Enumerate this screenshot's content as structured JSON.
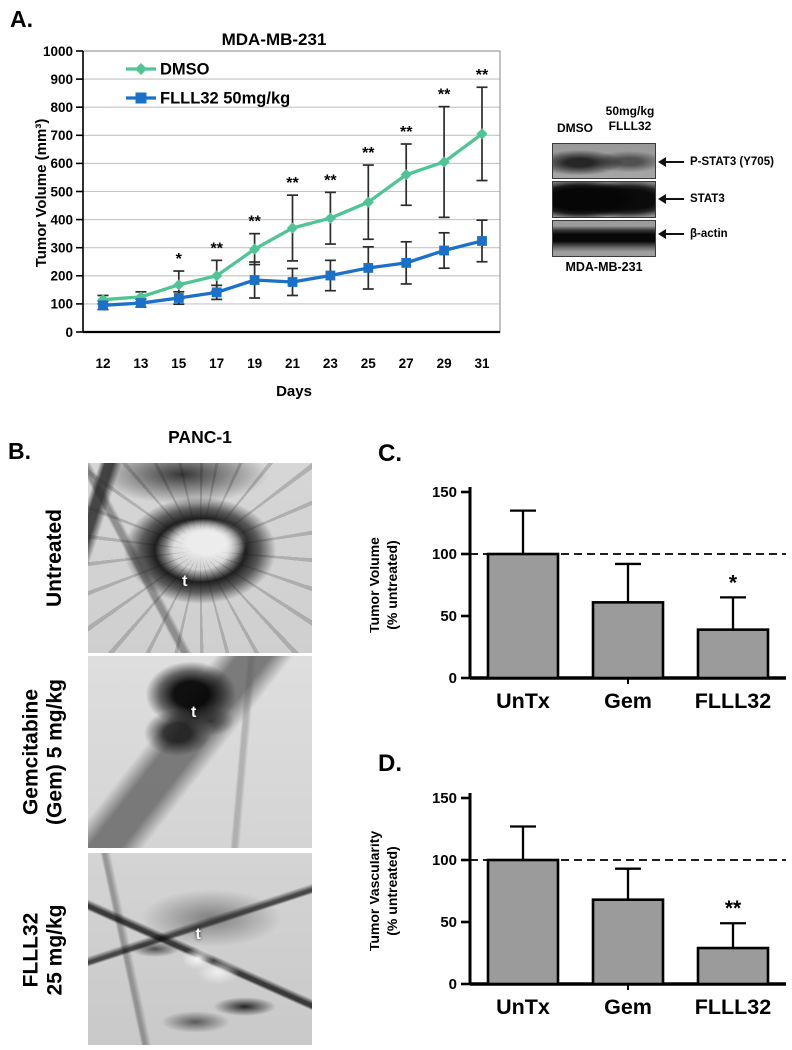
{
  "colors": {
    "dmso_green": "#4fc494",
    "flll32_blue": "#1b70c8",
    "bar_gray": "#9b9b9b",
    "background": "#ffffff"
  },
  "panelA": {
    "label": "A.",
    "blot": {
      "lane1_header": "DMSO",
      "lane2_header_line1": "50mg/kg",
      "lane2_header_line2": "FLLL32",
      "rows": [
        {
          "label": "P-STAT3 (Y705)"
        },
        {
          "label": "STAT3"
        },
        {
          "label": "β-actin"
        }
      ],
      "cell_line": "MDA-MB-231"
    }
  },
  "panelB": {
    "label": "B.",
    "title": "PANC-1",
    "images": [
      {
        "name": "untreated",
        "label_lines": [
          "Untreated"
        ],
        "marker": "t"
      },
      {
        "name": "gemcitabine",
        "label_lines": [
          "Gemcitabine",
          "(Gem) 5 mg/kg"
        ],
        "marker": "t"
      },
      {
        "name": "flll32",
        "label_lines": [
          "FLLL32",
          "25 mg/kg"
        ],
        "marker": "t"
      }
    ]
  },
  "panelC": {
    "label": "C."
  },
  "panelD": {
    "label": "D."
  },
  "chart_data": [
    {
      "id": "A",
      "type": "line",
      "title": "MDA-MB-231",
      "xlabel": "Days",
      "ylabel": "Tumor Volume (mm³)",
      "categories": [
        "12",
        "13",
        "15",
        "17",
        "19",
        "21",
        "23",
        "25",
        "27",
        "29",
        "31"
      ],
      "ylim": [
        0,
        1000
      ],
      "yticks": [
        0,
        100,
        200,
        300,
        400,
        500,
        600,
        700,
        800,
        900,
        1000
      ],
      "grid": true,
      "legend_position": "top-left-inside",
      "series": [
        {
          "name": "DMSO",
          "color": "#4fc494",
          "marker": "diamond",
          "values": [
            115,
            125,
            168,
            200,
            295,
            370,
            405,
            462,
            560,
            605,
            705
          ],
          "err": [
            15,
            18,
            49,
            55,
            55,
            117,
            92,
            132,
            109,
            197,
            166
          ]
        },
        {
          "name": "FLLL32 50mg/kg",
          "color": "#1b70c8",
          "marker": "square",
          "values": [
            95,
            103,
            121,
            141,
            185,
            178,
            201,
            228,
            246,
            290,
            324
          ],
          "err": [
            15,
            14,
            22,
            25,
            64,
            48,
            54,
            75,
            75,
            63,
            74
          ]
        }
      ],
      "significance": [
        "",
        "",
        "*",
        "**",
        "**",
        "**",
        "**",
        "**",
        "**",
        "**",
        "**"
      ]
    },
    {
      "id": "C",
      "type": "bar",
      "ylabel_lines": [
        "Tumor Volume",
        "(% untreated)"
      ],
      "categories": [
        "UnTx",
        "Gem",
        "FLLL32"
      ],
      "values": [
        100,
        61,
        39
      ],
      "errors": [
        35,
        31,
        26
      ],
      "significance": [
        "",
        "",
        "*"
      ],
      "yticks": [
        0,
        50,
        100,
        150
      ],
      "ylim": [
        0,
        150
      ],
      "dashed_line_y": 100,
      "bar_color": "#9b9b9b"
    },
    {
      "id": "D",
      "type": "bar",
      "ylabel_lines": [
        "Tumor Vascularity",
        "(% untreated)"
      ],
      "categories": [
        "UnTx",
        "Gem",
        "FLLL32"
      ],
      "values": [
        100,
        68,
        29
      ],
      "errors": [
        27,
        25,
        20
      ],
      "significance": [
        "",
        "",
        "**"
      ],
      "yticks": [
        0,
        50,
        100,
        150
      ],
      "ylim": [
        0,
        150
      ],
      "dashed_line_y": 100,
      "bar_color": "#9b9b9b"
    }
  ]
}
